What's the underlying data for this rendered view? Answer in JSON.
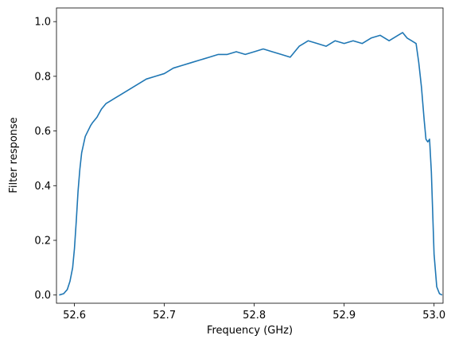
{
  "chart_data": {
    "type": "line",
    "title": "",
    "xlabel": "Frequency (GHz)",
    "ylabel": "Filter response",
    "xlim": [
      52.58,
      53.01
    ],
    "ylim": [
      -0.03,
      1.05
    ],
    "x_ticks": [
      52.6,
      52.7,
      52.8,
      52.9,
      53.0
    ],
    "x_tick_labels": [
      "52.6",
      "52.7",
      "52.8",
      "52.9",
      "53.0"
    ],
    "y_ticks": [
      0.0,
      0.2,
      0.4,
      0.6,
      0.8,
      1.0
    ],
    "y_tick_labels": [
      "0.0",
      "0.2",
      "0.4",
      "0.6",
      "0.8",
      "1.0"
    ],
    "grid": false,
    "legend": "none",
    "series": [
      {
        "color": "#1f77b4",
        "x": [
          52.583,
          52.588,
          52.592,
          52.595,
          52.598,
          52.6,
          52.602,
          52.604,
          52.606,
          52.608,
          52.61,
          52.612,
          52.615,
          52.618,
          52.62,
          52.625,
          52.63,
          52.635,
          52.64,
          52.645,
          52.65,
          52.66,
          52.67,
          52.68,
          52.69,
          52.7,
          52.71,
          52.72,
          52.73,
          52.74,
          52.75,
          52.76,
          52.77,
          52.78,
          52.79,
          52.8,
          52.81,
          52.82,
          52.83,
          52.84,
          52.85,
          52.86,
          52.87,
          52.88,
          52.89,
          52.9,
          52.91,
          52.92,
          52.93,
          52.94,
          52.95,
          52.96,
          52.965,
          52.97,
          52.975,
          52.98,
          52.983,
          52.986,
          52.989,
          52.991,
          52.993,
          52.995,
          52.997,
          53.0,
          53.003,
          53.006,
          53.009
        ],
        "y": [
          0.0,
          0.005,
          0.02,
          0.05,
          0.1,
          0.17,
          0.27,
          0.38,
          0.46,
          0.52,
          0.55,
          0.58,
          0.6,
          0.62,
          0.63,
          0.65,
          0.68,
          0.7,
          0.71,
          0.72,
          0.73,
          0.75,
          0.77,
          0.79,
          0.8,
          0.81,
          0.83,
          0.84,
          0.85,
          0.86,
          0.87,
          0.88,
          0.88,
          0.89,
          0.88,
          0.89,
          0.9,
          0.89,
          0.88,
          0.87,
          0.91,
          0.93,
          0.92,
          0.91,
          0.93,
          0.92,
          0.93,
          0.92,
          0.94,
          0.95,
          0.93,
          0.95,
          0.96,
          0.94,
          0.93,
          0.92,
          0.85,
          0.76,
          0.64,
          0.57,
          0.56,
          0.57,
          0.45,
          0.15,
          0.03,
          0.005,
          0.0
        ]
      }
    ]
  }
}
